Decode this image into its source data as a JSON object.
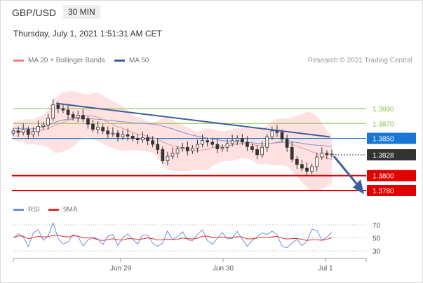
{
  "header": {
    "symbol": "GBP/USD",
    "timeframe": "30 MIN",
    "datetime": "Thursday, July 1, 2021 1:51:31 AM CET"
  },
  "legend_main": [
    {
      "label": "MA 20 + Bollinger Bands",
      "color": "#f08080"
    },
    {
      "label": "MA 50",
      "color": "#3a5f9f"
    }
  ],
  "legend_rsi": [
    {
      "label": "RSI",
      "color": "#6f8fe0"
    },
    {
      "label": "9MA",
      "color": "#e53030"
    }
  ],
  "copyright": "Research © 2021 Trading Central",
  "colors": {
    "resistance": "#8bc34a",
    "pivot": "#1976d2",
    "support": "#e00000",
    "current": "#333333",
    "candle_up": "#ffffff",
    "candle_down": "#333333",
    "band_fill": "#ffdede",
    "trendline": "#3a5f9f"
  },
  "chart_data": [
    {
      "type": "candlestick",
      "price_axis": {
        "min": 3.777,
        "max": 3.8,
        "note": "scaled: actual range 1.3770-1.4000"
      },
      "x_labels": [
        "Jun 29",
        "Jun 30",
        "Jul 1"
      ],
      "levels": [
        {
          "label": "1.3890",
          "kind": "resistance"
        },
        {
          "label": "1.3870",
          "kind": "resistance"
        },
        {
          "label": "1.3850",
          "kind": "pivot"
        },
        {
          "label": "1.3828",
          "kind": "current"
        },
        {
          "label": "1.3800",
          "kind": "support"
        },
        {
          "label": "1.3780",
          "kind": "support"
        }
      ],
      "closes_approx": [
        1.386,
        1.3858,
        1.3862,
        1.3855,
        1.3859,
        1.3866,
        1.3868,
        1.3877,
        1.3895,
        1.389,
        1.3888,
        1.3882,
        1.3878,
        1.3881,
        1.3876,
        1.3869,
        1.3862,
        1.3865,
        1.386,
        1.3856,
        1.3857,
        1.3852,
        1.3855,
        1.3853,
        1.385,
        1.3848,
        1.3851,
        1.3847,
        1.3842,
        1.3835,
        1.382,
        1.3826,
        1.383,
        1.3836,
        1.3838,
        1.3833,
        1.3837,
        1.3842,
        1.3847,
        1.3845,
        1.3842,
        1.3836,
        1.3838,
        1.3843,
        1.3847,
        1.385,
        1.3845,
        1.3839,
        1.3835,
        1.3828,
        1.3838,
        1.3852,
        1.386,
        1.3858,
        1.3849,
        1.3838,
        1.3822,
        1.3815,
        1.381,
        1.3806,
        1.3812,
        1.3825,
        1.383,
        1.3828,
        1.3829
      ]
    },
    {
      "type": "line",
      "title": "RSI",
      "y_ticks": [
        30,
        50,
        70
      ],
      "ylim": [
        20,
        80
      ]
    }
  ]
}
